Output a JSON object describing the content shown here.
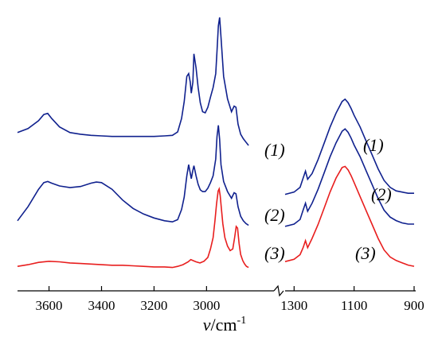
{
  "chart_data": [
    {
      "type": "line",
      "panel": "left",
      "title": "",
      "xlabel_var": "v",
      "xlabel_unit": "/cm",
      "xlabel_exp": "-1",
      "xlim": [
        3720,
        2810
      ],
      "xticks": [
        3600,
        3400,
        3200,
        3000
      ],
      "grid": false,
      "legend": "none (curve labels at right end)",
      "series": [
        {
          "name": "(1)",
          "color": "#10218e",
          "x": [
            3720,
            3680,
            3640,
            3620,
            3605,
            3590,
            3560,
            3520,
            3480,
            3440,
            3400,
            3360,
            3320,
            3280,
            3240,
            3200,
            3160,
            3130,
            3110,
            3095,
            3085,
            3075,
            3068,
            3062,
            3058,
            3052,
            3048,
            3040,
            3032,
            3024,
            3015,
            3005,
            2995,
            2985,
            2975,
            2965,
            2960,
            2955,
            2950,
            2945,
            2935,
            2920,
            2905,
            2895,
            2888,
            2880,
            2870,
            2860,
            2850,
            2840
          ],
          "y": [
            1.15,
            1.22,
            1.36,
            1.47,
            1.49,
            1.4,
            1.25,
            1.15,
            1.12,
            1.1,
            1.09,
            1.08,
            1.08,
            1.08,
            1.08,
            1.08,
            1.09,
            1.1,
            1.16,
            1.4,
            1.7,
            2.15,
            2.2,
            2.05,
            1.85,
            2.05,
            2.55,
            2.3,
            1.95,
            1.68,
            1.52,
            1.5,
            1.6,
            1.78,
            1.95,
            2.2,
            2.6,
            3.05,
            3.2,
            2.85,
            2.15,
            1.75,
            1.52,
            1.62,
            1.6,
            1.3,
            1.12,
            1.04,
            0.98,
            0.92
          ]
        },
        {
          "name": "(2)",
          "color": "#10218e",
          "x": [
            3720,
            3680,
            3640,
            3620,
            3605,
            3590,
            3560,
            3520,
            3480,
            3440,
            3420,
            3400,
            3360,
            3320,
            3280,
            3240,
            3200,
            3160,
            3130,
            3110,
            3095,
            3085,
            3075,
            3068,
            3062,
            3058,
            3052,
            3048,
            3040,
            3032,
            3024,
            3015,
            3005,
            2995,
            2985,
            2975,
            2965,
            2960,
            2955,
            2950,
            2945,
            2935,
            2920,
            2905,
            2895,
            2888,
            2880,
            2870,
            2860,
            2850,
            2840
          ],
          "y": [
            0.3,
            0.55,
            0.86,
            0.98,
            1.0,
            0.97,
            0.92,
            0.89,
            0.91,
            0.97,
            0.99,
            0.98,
            0.86,
            0.67,
            0.52,
            0.42,
            0.35,
            0.3,
            0.28,
            0.32,
            0.5,
            0.72,
            1.1,
            1.3,
            1.15,
            1.05,
            1.2,
            1.28,
            1.1,
            0.95,
            0.85,
            0.82,
            0.82,
            0.88,
            0.98,
            1.1,
            1.4,
            1.8,
            2.0,
            1.75,
            1.3,
            1.0,
            0.82,
            0.7,
            0.8,
            0.78,
            0.55,
            0.38,
            0.3,
            0.25,
            0.22
          ]
        },
        {
          "name": "(3)",
          "color": "#e81e1e",
          "x": [
            3720,
            3680,
            3640,
            3600,
            3560,
            3520,
            3480,
            3440,
            3400,
            3360,
            3320,
            3280,
            3240,
            3200,
            3160,
            3130,
            3110,
            3090,
            3070,
            3060,
            3050,
            3040,
            3025,
            3010,
            2995,
            2985,
            2975,
            2968,
            2962,
            2956,
            2952,
            2948,
            2944,
            2938,
            2930,
            2920,
            2910,
            2900,
            2893,
            2887,
            2882,
            2876,
            2870,
            2862,
            2855,
            2848,
            2840
          ],
          "y": [
            0.04,
            0.07,
            0.11,
            0.13,
            0.12,
            0.1,
            0.09,
            0.08,
            0.07,
            0.06,
            0.06,
            0.05,
            0.04,
            0.03,
            0.03,
            0.02,
            0.04,
            0.07,
            0.12,
            0.16,
            0.14,
            0.12,
            0.1,
            0.13,
            0.2,
            0.35,
            0.55,
            0.85,
            1.15,
            1.38,
            1.42,
            1.3,
            1.1,
            0.8,
            0.55,
            0.4,
            0.32,
            0.35,
            0.55,
            0.75,
            0.72,
            0.45,
            0.25,
            0.14,
            0.08,
            0.04,
            0.02
          ]
        }
      ]
    },
    {
      "type": "line",
      "panel": "right",
      "title": "",
      "xlim": [
        1330,
        900
      ],
      "xticks": [
        1300,
        1100,
        900
      ],
      "grid": false,
      "legend": "none (curve labels above peaks)",
      "series": [
        {
          "name": "(1)",
          "color": "#10218e",
          "x": [
            1330,
            1300,
            1280,
            1270,
            1262,
            1255,
            1240,
            1220,
            1200,
            1180,
            1160,
            1140,
            1130,
            1120,
            1110,
            1100,
            1080,
            1060,
            1040,
            1020,
            1000,
            980,
            960,
            940,
            920,
            900
          ],
          "y": [
            0.42,
            0.44,
            0.48,
            0.56,
            0.62,
            0.55,
            0.6,
            0.72,
            0.86,
            1.0,
            1.12,
            1.22,
            1.24,
            1.21,
            1.16,
            1.1,
            1.0,
            0.88,
            0.76,
            0.64,
            0.54,
            0.48,
            0.45,
            0.44,
            0.43,
            0.43
          ]
        },
        {
          "name": "(2)",
          "color": "#10218e",
          "x": [
            1330,
            1300,
            1280,
            1270,
            1262,
            1255,
            1240,
            1220,
            1200,
            1180,
            1160,
            1140,
            1130,
            1120,
            1110,
            1100,
            1080,
            1060,
            1040,
            1020,
            1000,
            980,
            960,
            940,
            920,
            900
          ],
          "y": [
            0.24,
            0.26,
            0.3,
            0.38,
            0.44,
            0.37,
            0.44,
            0.56,
            0.7,
            0.84,
            0.96,
            1.06,
            1.08,
            1.05,
            1.0,
            0.94,
            0.84,
            0.72,
            0.6,
            0.48,
            0.38,
            0.32,
            0.29,
            0.27,
            0.26,
            0.26
          ]
        },
        {
          "name": "(3)",
          "color": "#e81e1e",
          "x": [
            1330,
            1300,
            1280,
            1270,
            1262,
            1255,
            1240,
            1220,
            1200,
            1180,
            1160,
            1140,
            1130,
            1120,
            1110,
            1100,
            1080,
            1060,
            1040,
            1020,
            1000,
            980,
            960,
            940,
            920,
            900
          ],
          "y": [
            0.06,
            0.08,
            0.12,
            0.18,
            0.24,
            0.18,
            0.26,
            0.38,
            0.52,
            0.66,
            0.78,
            0.87,
            0.88,
            0.85,
            0.8,
            0.74,
            0.62,
            0.5,
            0.38,
            0.26,
            0.16,
            0.1,
            0.07,
            0.05,
            0.03,
            0.02
          ]
        }
      ]
    }
  ]
}
